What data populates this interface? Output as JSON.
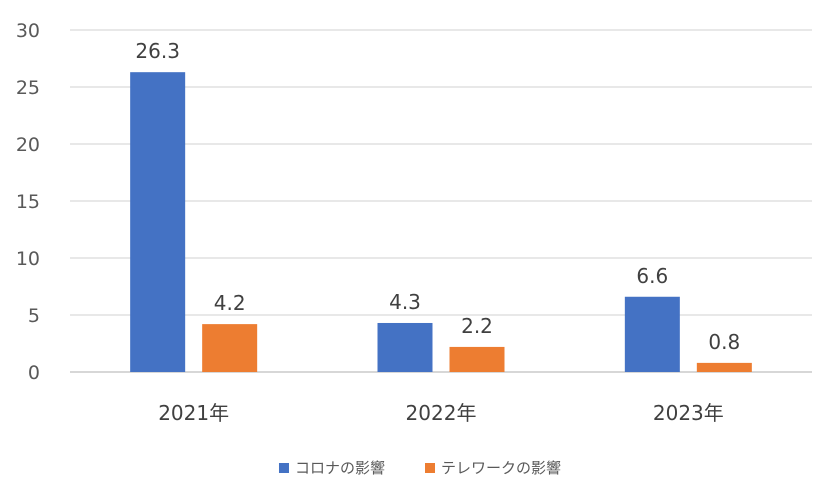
{
  "chart_data": {
    "type": "bar",
    "categories": [
      "2021年",
      "2022年",
      "2023年"
    ],
    "series": [
      {
        "name": "コロナの影響",
        "values": [
          26.3,
          4.3,
          6.6
        ],
        "color": "#4472C4"
      },
      {
        "name": "テレワークの影響",
        "values": [
          4.2,
          2.2,
          0.8
        ],
        "color": "#ED7D31"
      }
    ],
    "ylim": [
      0,
      30
    ],
    "yticks": [
      0,
      5,
      10,
      15,
      20,
      25,
      30
    ],
    "grid": true,
    "legend": "bottom",
    "data_labels": true
  }
}
